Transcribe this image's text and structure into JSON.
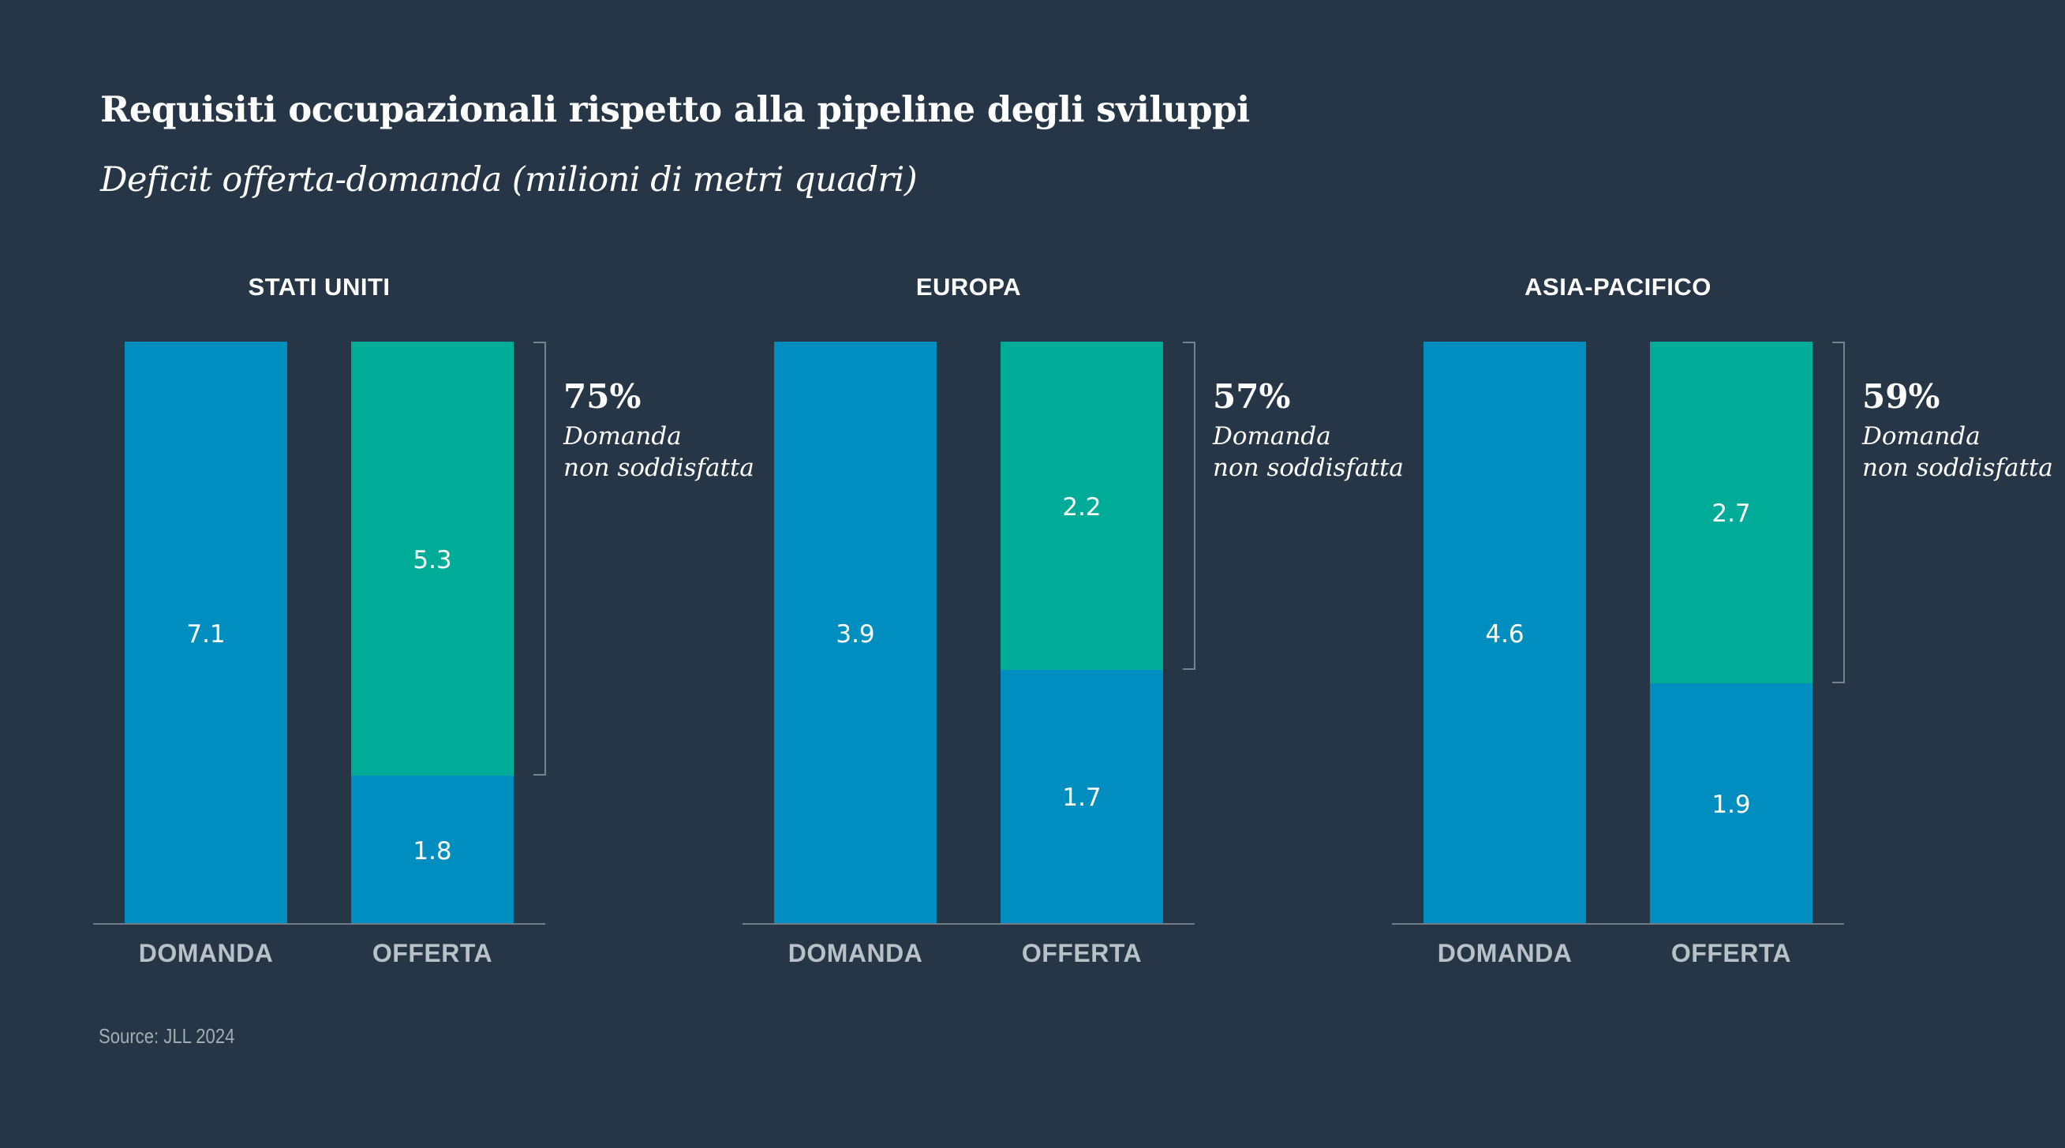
{
  "title": "Requisiti occupazionali rispetto alla pipeline degli sviluppi",
  "subtitle": "Deficit offerta-domanda (milioni di metri quadri)",
  "source": "Source: JLL 2024",
  "colors": {
    "background": "#263646",
    "demand": "#008dbf",
    "supply_existing": "#008dbf",
    "supply_gap": "#00ab97",
    "text": "#ffffff",
    "axis_label": "#b9c1c8"
  },
  "chart_data": [
    {
      "type": "bar",
      "title": "STATI UNITI",
      "categories": [
        "DOMANDA",
        "OFFERTA"
      ],
      "demand": 7.1,
      "supply_segments": [
        {
          "name": "offerta",
          "value": 1.8
        },
        {
          "name": "deficit",
          "value": 5.3
        }
      ],
      "unmet_percent": "75%",
      "unmet_label": [
        "Domanda",
        "non soddisfatta"
      ]
    },
    {
      "type": "bar",
      "title": "EUROPA",
      "categories": [
        "DOMANDA",
        "OFFERTA"
      ],
      "demand": 3.9,
      "supply_segments": [
        {
          "name": "offerta",
          "value": 1.7
        },
        {
          "name": "deficit",
          "value": 2.2
        }
      ],
      "unmet_percent": "57%",
      "unmet_label": [
        "Domanda",
        "non soddisfatta"
      ]
    },
    {
      "type": "bar",
      "title": "ASIA-PACIFICO",
      "categories": [
        "DOMANDA",
        "OFFERTA"
      ],
      "demand": 4.6,
      "supply_segments": [
        {
          "name": "offerta",
          "value": 1.9
        },
        {
          "name": "deficit",
          "value": 2.7
        }
      ],
      "unmet_percent": "59%",
      "unmet_label": [
        "Domanda",
        "non soddisfatta"
      ]
    }
  ]
}
